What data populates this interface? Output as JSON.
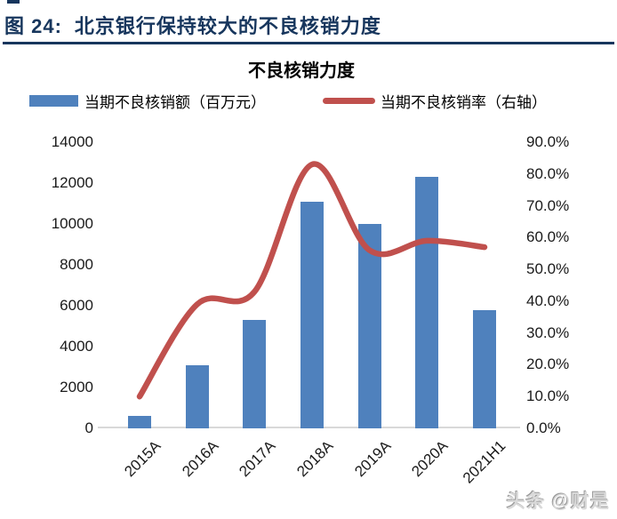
{
  "page": {
    "figure_label": "图 24:",
    "figure_title": "北京银行保持较大的不良核销力度",
    "watermark": "头条 @财是"
  },
  "colors": {
    "heading_navy": "#17365D",
    "bar_blue": "#4F81BD",
    "line_red": "#C0504D",
    "baseline_grey": "#D9D9D9",
    "axis_text": "#1a1a1a"
  },
  "chart_data": {
    "type": "bar",
    "title": "不良核销力度",
    "categories": [
      "2015A",
      "2016A",
      "2017A",
      "2018A",
      "2019A",
      "2020A",
      "2021H1"
    ],
    "series": [
      {
        "name": "当期不良核销额（百万元）",
        "type": "bar",
        "axis": "left",
        "color": "#4F81BD",
        "values": [
          600,
          3100,
          5300,
          11100,
          10000,
          12300,
          5800
        ]
      },
      {
        "name": "当期不良核销率（右轴）",
        "type": "line",
        "axis": "right",
        "color": "#C0504D",
        "values": [
          10.0,
          39.0,
          43.0,
          83.0,
          56.0,
          59.0,
          57.0
        ]
      }
    ],
    "left_axis": {
      "min": 0,
      "max": 14000,
      "step": 2000,
      "tick_labels": [
        "14000",
        "12000",
        "10000",
        "8000",
        "6000",
        "4000",
        "2000",
        "0"
      ]
    },
    "right_axis": {
      "min": 0,
      "max": 90,
      "step": 10,
      "unit": "%",
      "tick_labels": [
        "90.0%",
        "80.0%",
        "70.0%",
        "60.0%",
        "50.0%",
        "40.0%",
        "30.0%",
        "20.0%",
        "10.0%",
        "0.0%"
      ]
    },
    "legend_position": "top",
    "grid": false,
    "line_smooth": true
  }
}
